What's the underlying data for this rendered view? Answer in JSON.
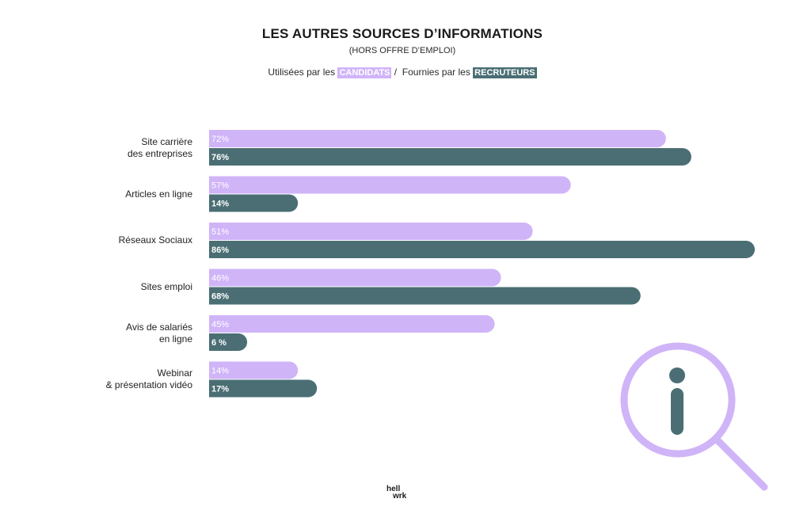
{
  "header": {
    "title": "LES AUTRES SOURCES D’INFORMATIONS",
    "subtitle": "(HORS OFFRE D’EMPLOI)",
    "legend_prefix_candidats": "Utilisées par les",
    "legend_candidats": "CANDIDATS",
    "legend_separator": "/",
    "legend_prefix_recruteurs": "Fournies par les",
    "legend_recruteurs": "RECRUTEURS"
  },
  "logo": {
    "line1": "hell",
    "line2": "wrk"
  },
  "colors": {
    "candidats": "#d0b4f8",
    "recruteurs": "#4a6e74",
    "candidats_text": "#ffffff",
    "recruteurs_text": "#ffffff",
    "magnifier": "#d0b4f8",
    "info_glyph": "#4a6e74"
  },
  "chart_data": {
    "type": "bar",
    "orientation": "horizontal",
    "categories": [
      [
        "Site carrière",
        "des entreprises"
      ],
      [
        "Articles en ligne"
      ],
      [
        "Réseaux Sociaux"
      ],
      [
        "Sites emploi"
      ],
      [
        "Avis de salariés",
        "en ligne"
      ],
      [
        "Webinar",
        "& présentation vidéo"
      ]
    ],
    "series": [
      {
        "name": "CANDIDATS",
        "values": [
          72,
          57,
          51,
          46,
          45,
          14
        ],
        "labels": [
          "72%",
          "57%",
          "51%",
          "46%",
          "45%",
          "14%"
        ]
      },
      {
        "name": "RECRUTEURS",
        "values": [
          76,
          14,
          86,
          68,
          6,
          17
        ],
        "labels": [
          "76%",
          "14%",
          "86%",
          "68%",
          "6 %",
          "17%"
        ]
      }
    ],
    "xlim": [
      0,
      86
    ],
    "grid": false
  }
}
